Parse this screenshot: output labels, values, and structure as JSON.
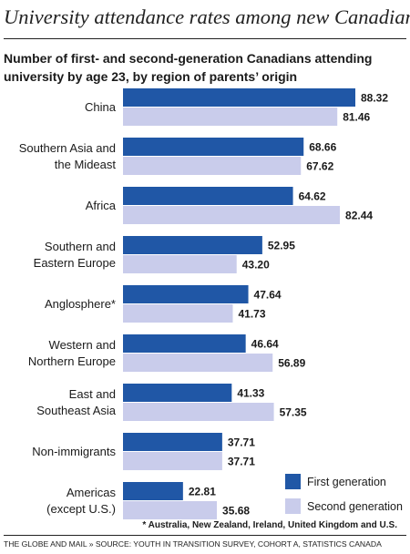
{
  "header": {
    "title": "University attendance rates among new Canadians",
    "subtitle": "Number of first- and second-generation Canadians attending university by age 23, by region of parents’ origin"
  },
  "chart_data": {
    "type": "bar",
    "orientation": "horizontal",
    "categories": [
      [
        "China"
      ],
      [
        "Southern Asia and",
        "the Mideast"
      ],
      [
        "Africa"
      ],
      [
        "Southern and",
        "Eastern Europe"
      ],
      [
        "Anglosphere*"
      ],
      [
        "Western and",
        "Northern Europe"
      ],
      [
        "East and",
        "Southeast Asia"
      ],
      [
        "Non-immigrants"
      ],
      [
        "Americas",
        "(except U.S.)"
      ]
    ],
    "series": [
      {
        "name": "First generation",
        "color": "#2057a6",
        "values": [
          88.32,
          68.66,
          64.62,
          52.95,
          47.64,
          46.64,
          41.33,
          37.71,
          22.81
        ],
        "labels": [
          "88.32",
          "68.66",
          "64.62",
          "52.95",
          "47.64",
          "46.64",
          "41.33",
          "37.71",
          "22.81"
        ]
      },
      {
        "name": "Second generation",
        "color": "#c9cceb",
        "values": [
          81.46,
          67.62,
          82.44,
          43.2,
          41.73,
          56.89,
          57.35,
          37.71,
          35.68
        ],
        "labels": [
          "81.46",
          "67.62",
          "82.44",
          "43.20",
          "41.73",
          "56.89",
          "57.35",
          "37.71",
          "35.68"
        ]
      }
    ],
    "xlim": [
      0,
      88.32
    ],
    "grid": false,
    "legend_position": "bottom-right",
    "data_labels": true
  },
  "footnote": "* Australia, New Zealand, Ireland, United Kingdom and U.S.",
  "source": "THE GLOBE AND MAIL  »  SOURCE: YOUTH IN TRANSITION SURVEY, COHORT A, STATISTICS CANADA"
}
